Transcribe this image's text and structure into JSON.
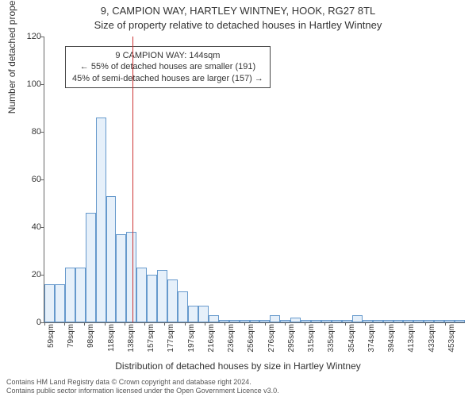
{
  "titles": {
    "line1": "9, CAMPION WAY, HARTLEY WINTNEY, HOOK, RG27 8TL",
    "line2": "Size of property relative to detached houses in Hartley Wintney"
  },
  "chart": {
    "type": "histogram",
    "ylabel": "Number of detached properties",
    "xlabel": "Distribution of detached houses by size in Hartley Wintney",
    "ylim": [
      0,
      120
    ],
    "ytick_step": 20,
    "yticks": [
      0,
      20,
      40,
      60,
      80,
      100,
      120
    ],
    "x_categories": [
      "59sqm",
      "79sqm",
      "98sqm",
      "118sqm",
      "138sqm",
      "157sqm",
      "177sqm",
      "197sqm",
      "216sqm",
      "236sqm",
      "256sqm",
      "276sqm",
      "295sqm",
      "315sqm",
      "335sqm",
      "354sqm",
      "374sqm",
      "394sqm",
      "413sqm",
      "433sqm",
      "453sqm"
    ],
    "values": [
      16,
      16,
      23,
      23,
      46,
      86,
      53,
      37,
      38,
      23,
      20,
      22,
      18,
      13,
      7,
      7,
      3,
      1,
      1,
      1,
      1,
      1,
      3,
      1,
      2,
      1,
      1,
      1,
      1,
      1,
      3,
      1,
      1,
      1,
      1,
      1,
      1,
      1,
      1,
      1,
      1
    ],
    "bar_fill": "#e6f0fa",
    "bar_border": "#6699cc",
    "background_color": "#ffffff",
    "axis_color": "#666666",
    "marker": {
      "position_index": 8.6,
      "color": "#cc3333"
    },
    "annotation": {
      "line1": "9 CAMPION WAY: 144sqm",
      "line2": "← 55% of detached houses are smaller (191)",
      "line3": "45% of semi-detached houses are larger (157) →"
    }
  },
  "footer": {
    "line1": "Contains HM Land Registry data © Crown copyright and database right 2024.",
    "line2": "Contains public sector information licensed under the Open Government Licence v3.0."
  }
}
